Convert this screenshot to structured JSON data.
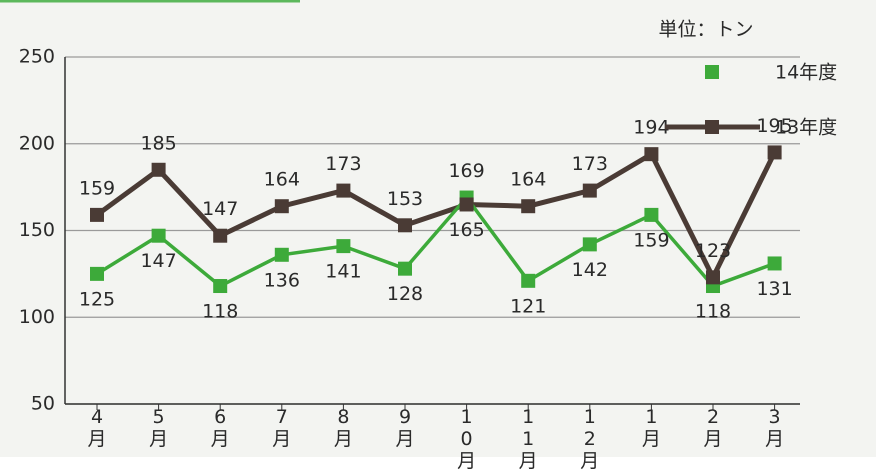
{
  "chart_data": {
    "type": "line",
    "unit_label": "単位：トン",
    "categories": [
      "4月",
      "5月",
      "6月",
      "7月",
      "8月",
      "9月",
      "10月",
      "11月",
      "12月",
      "1月",
      "2月",
      "3月"
    ],
    "series": [
      {
        "name": "14年度",
        "color": "#3daa3a",
        "values": [
          125,
          147,
          118,
          136,
          141,
          128,
          169,
          121,
          142,
          159,
          118,
          131
        ]
      },
      {
        "name": "13年度",
        "color": "#4a3b35",
        "values": [
          159,
          185,
          147,
          164,
          173,
          153,
          165,
          164,
          173,
          194,
          123,
          195
        ]
      }
    ],
    "ylim": [
      50,
      250
    ],
    "yticks": [
      50,
      100,
      150,
      200,
      250
    ],
    "grid": true
  }
}
